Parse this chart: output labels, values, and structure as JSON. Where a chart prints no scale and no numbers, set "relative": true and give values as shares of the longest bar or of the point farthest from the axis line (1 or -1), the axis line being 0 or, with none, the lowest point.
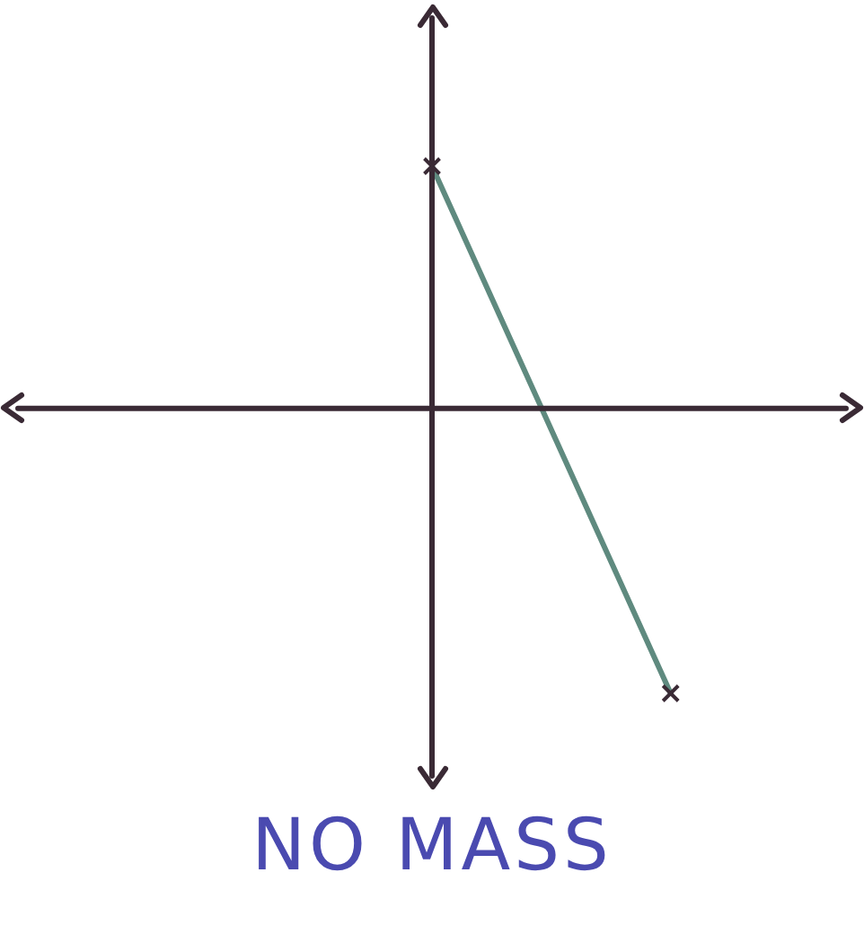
{
  "chart_data": {
    "type": "line",
    "title": "NO MASS",
    "relative": true,
    "categories": [
      null,
      null,
      null,
      null,
      null,
      null,
      null
    ],
    "series": [
      {
        "color": "#5f8a7f",
        "values": [
          null,
          null,
          null,
          0.85,
          null,
          -1,
          null
        ]
      }
    ],
    "marker": "cross",
    "line_style": "solid",
    "grid": false,
    "legend": false,
    "tick_labels": false
  }
}
